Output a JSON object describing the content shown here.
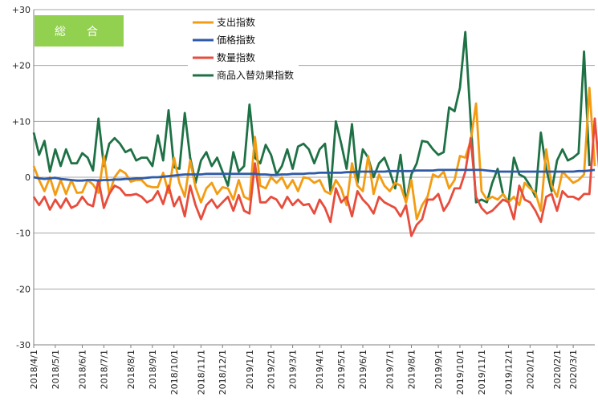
{
  "badge": {
    "label": "総　合",
    "color": "#92d050"
  },
  "chart_data": {
    "type": "line",
    "title": "",
    "xlabel": "",
    "ylabel": "",
    "ylim": [
      -30,
      30
    ],
    "yticks": [
      30,
      20,
      10,
      0,
      -10,
      -20,
      -30
    ],
    "ytick_labels": [
      "+30",
      "+20",
      "+10",
      "0",
      "-10",
      "-20",
      "-30"
    ],
    "grid": "horizontal",
    "legend": "top-center",
    "x_tick_labels": [
      "2018/4/1",
      "2018/5/1",
      "2018/6/1",
      "2018/7/1",
      "2018/8/1",
      "2018/9/1",
      "2018/10/1",
      "2018/11/1",
      "2018/12/1",
      "2019/1/1",
      "2019/2/1",
      "2019/3/1",
      "2019/4/1",
      "2019/5/1",
      "2019/6/1",
      "2019/7/1",
      "2019/8/1",
      "2019/9/1",
      "2019/10/1",
      "2019/11/1",
      "2019/12/1",
      "2020/1/1",
      "2020/2/1",
      "2020/3/1"
    ],
    "x_tick_index": [
      0,
      4,
      9,
      13,
      18,
      22,
      26,
      31,
      35,
      40,
      44,
      48,
      53,
      57,
      61,
      66,
      70,
      75,
      79,
      83,
      88,
      92,
      97,
      100
    ],
    "series": [
      {
        "name": "支出指数",
        "color": "#f39c12",
        "values": [
          2.0,
          -0.5,
          -2.5,
          0.0,
          -3.2,
          -0.5,
          -3.0,
          -0.5,
          -2.8,
          -2.7,
          -0.5,
          -1.3,
          -2.8,
          3.8,
          -3.0,
          0.0,
          1.3,
          0.7,
          -0.8,
          -0.5,
          -0.5,
          -1.5,
          -1.8,
          -1.8,
          0.8,
          -2.8,
          3.5,
          -1.0,
          -3.5,
          3.0,
          -1.8,
          -4.5,
          -2.0,
          -1.0,
          -3.0,
          -1.8,
          -2.0,
          -4.0,
          -0.5,
          -3.5,
          -4.0,
          7.2,
          -1.5,
          -2.0,
          0.0,
          -1.0,
          0.0,
          -2.0,
          -0.5,
          -2.5,
          0.0,
          -0.2,
          -1.0,
          -0.5,
          -2.5,
          -3.0,
          -0.5,
          -2.0,
          -5.0,
          2.5,
          -1.5,
          -2.5,
          3.8,
          -3.0,
          0.5,
          -1.5,
          -2.5,
          -1.0,
          -1.5,
          -4.5,
          -0.5,
          -7.5,
          -5.0,
          -3.5,
          0.5,
          0.0,
          1.0,
          -2.0,
          -0.5,
          3.8,
          3.5,
          6.5,
          13.2,
          -2.5,
          -4.0,
          -3.5,
          -4.0,
          -3.0,
          -4.5,
          -3.5,
          -5.0,
          -1.0,
          -2.0,
          -2.8,
          -6.0,
          5.0,
          -1.5,
          -3.5,
          1.0,
          0.0,
          -1.0,
          -0.5,
          0.5,
          16.0,
          2.0
        ]
      },
      {
        "name": "価格指数",
        "color": "#2e5aa8",
        "values": [
          0.0,
          -0.2,
          -0.3,
          -0.2,
          -0.1,
          -0.3,
          -0.4,
          -0.5,
          -0.6,
          -0.6,
          -0.5,
          -0.5,
          -0.6,
          -0.5,
          -0.5,
          -0.4,
          -0.4,
          -0.3,
          -0.3,
          -0.2,
          -0.2,
          -0.1,
          0.0,
          0.0,
          0.1,
          0.2,
          0.3,
          0.4,
          0.5,
          0.5,
          0.5,
          0.5,
          0.6,
          0.6,
          0.6,
          0.6,
          0.6,
          0.6,
          0.6,
          0.6,
          0.6,
          0.6,
          0.5,
          0.5,
          0.4,
          0.4,
          0.5,
          0.5,
          0.6,
          0.6,
          0.6,
          0.7,
          0.7,
          0.8,
          0.8,
          0.8,
          0.8,
          0.8,
          0.9,
          0.9,
          1.0,
          1.0,
          1.0,
          1.0,
          1.0,
          1.0,
          1.1,
          1.1,
          1.1,
          1.1,
          1.1,
          1.2,
          1.2,
          1.2,
          1.2,
          1.3,
          1.3,
          1.3,
          1.3,
          1.3,
          1.3,
          1.3,
          1.3,
          1.3,
          1.2,
          1.1,
          1.0,
          1.0,
          1.0,
          1.0,
          1.0,
          1.0,
          1.0,
          1.0,
          1.0,
          1.0,
          1.0,
          1.0,
          1.0,
          1.0,
          1.0,
          1.1,
          1.1,
          1.2,
          1.3
        ]
      },
      {
        "name": "数量指数",
        "color": "#e74c3c",
        "values": [
          -3.5,
          -5.0,
          -3.5,
          -5.8,
          -4.0,
          -5.5,
          -3.8,
          -5.5,
          -5.0,
          -3.5,
          -4.8,
          -5.2,
          -0.5,
          -5.5,
          -3.0,
          -1.5,
          -2.0,
          -3.2,
          -3.2,
          -3.0,
          -3.5,
          -4.5,
          -4.0,
          -2.5,
          -4.8,
          -1.5,
          -5.2,
          -3.5,
          -7.0,
          -1.5,
          -5.0,
          -7.5,
          -5.0,
          -4.0,
          -5.5,
          -4.5,
          -3.5,
          -6.0,
          -3.2,
          -6.0,
          -6.5,
          2.5,
          -4.5,
          -4.5,
          -3.5,
          -4.0,
          -5.5,
          -3.5,
          -5.0,
          -4.0,
          -5.0,
          -4.8,
          -6.5,
          -4.0,
          -5.5,
          -8.0,
          -2.0,
          -4.5,
          -3.5,
          -7.0,
          -2.5,
          -4.0,
          -5.0,
          -6.5,
          -3.5,
          -4.5,
          -5.0,
          -5.5,
          -7.0,
          -5.0,
          -10.5,
          -8.5,
          -7.5,
          -4.0,
          -4.0,
          -3.0,
          -6.0,
          -4.5,
          -2.0,
          -2.0,
          1.0,
          7.0,
          -3.5,
          -5.5,
          -6.5,
          -6.0,
          -5.0,
          -4.0,
          -4.5,
          -7.5,
          -1.5,
          -4.0,
          -4.5,
          -6.0,
          -8.0,
          -3.5,
          -3.0,
          -6.0,
          -2.5,
          -3.5,
          -3.5,
          -4.0,
          -3.0,
          -3.0,
          10.5,
          -0.5
        ]
      },
      {
        "name": "商品入替効果指数",
        "color": "#1e7145",
        "values": [
          8.0,
          4.0,
          6.5,
          1.0,
          5.0,
          2.0,
          5.0,
          2.5,
          2.5,
          4.3,
          3.5,
          1.2,
          10.5,
          2.0,
          6.0,
          7.0,
          6.0,
          4.5,
          5.0,
          3.0,
          3.5,
          3.5,
          2.0,
          7.5,
          3.0,
          12.0,
          1.8,
          1.5,
          11.5,
          3.5,
          -1.0,
          3.0,
          4.5,
          2.0,
          3.5,
          1.0,
          -1.5,
          4.5,
          1.0,
          2.0,
          13.0,
          3.5,
          2.5,
          5.8,
          4.0,
          0.5,
          2.0,
          5.0,
          1.5,
          5.5,
          6.0,
          5.0,
          2.5,
          5.0,
          6.0,
          -2.5,
          10.0,
          6.0,
          1.5,
          9.5,
          -1.0,
          5.0,
          3.5,
          0.0,
          2.5,
          3.5,
          1.0,
          -2.0,
          4.0,
          -4.5,
          0.5,
          2.5,
          6.5,
          6.3,
          5.0,
          4.0,
          4.5,
          12.5,
          11.8,
          16.0,
          26.0,
          10.0,
          -4.5,
          -4.0,
          -4.5,
          -1.0,
          1.5,
          -3.0,
          -4.5,
          3.5,
          0.5,
          0.0,
          -1.5,
          -3.5,
          8.0,
          1.5,
          -2.5,
          3.0,
          5.0,
          3.0,
          3.5,
          4.3,
          22.5,
          2.0
        ]
      }
    ]
  }
}
